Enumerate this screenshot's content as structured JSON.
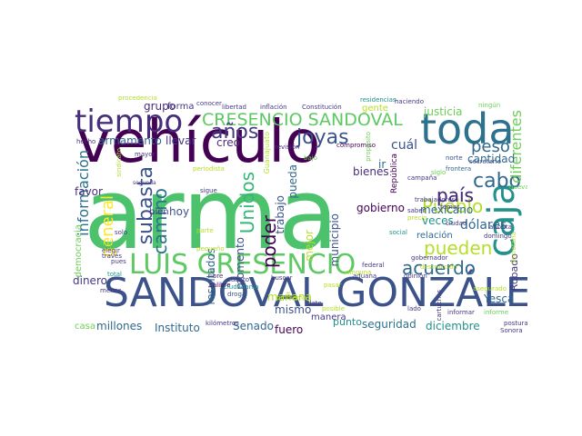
{
  "words": [
    {
      "text": "arma",
      "color": "#4cc26c"
    },
    {
      "text": "vehículo",
      "color": "#440154"
    },
    {
      "text": "SANDOVAL GONZÁLEZ",
      "color": "#3b528b"
    },
    {
      "text": "LUIS CRESENCIO",
      "color": "#5ec962"
    },
    {
      "text": "toda",
      "color": "#2c728e"
    },
    {
      "text": "tiempo",
      "color": "#472d7b"
    },
    {
      "text": "caja",
      "color": "#21918c"
    },
    {
      "text": "CRESENCIO SANDOVAL",
      "color": "#5ec962"
    },
    {
      "text": "subasta",
      "color": "#3b528b"
    },
    {
      "text": "información",
      "color": "#2c728e"
    },
    {
      "text": "años",
      "color": "#443983"
    },
    {
      "text": "joyas",
      "color": "#3b528b"
    },
    {
      "text": "cabo",
      "color": "#31688e"
    },
    {
      "text": "país",
      "color": "#472d7b"
    },
    {
      "text": "acuerdo",
      "color": "#31688e"
    },
    {
      "text": "Pueblo",
      "color": "#b5de2b"
    },
    {
      "text": "pueden",
      "color": "#b5de2b"
    },
    {
      "text": "poder",
      "color": "#440154"
    },
    {
      "text": "Unidos",
      "color": "#35b779"
    },
    {
      "text": "camino",
      "color": "#2c728e"
    },
    {
      "text": "general",
      "color": "#fde725"
    },
    {
      "text": "diferentes",
      "color": "#6ece58"
    },
    {
      "text": "peso",
      "color": "#31688e"
    },
    {
      "text": "armamento",
      "color": "#31688e"
    },
    {
      "text": "grupo",
      "color": "#472d7b"
    },
    {
      "text": "forma",
      "color": "#443983"
    },
    {
      "text": "llevar",
      "color": "#443983"
    },
    {
      "text": "justicia",
      "color": "#6ece58"
    },
    {
      "text": "cantidad",
      "color": "#31688e"
    },
    {
      "text": "gente",
      "color": "#b5de2b"
    },
    {
      "text": "veces",
      "color": "#21918c"
    },
    {
      "text": "dólares",
      "color": "#31688e"
    },
    {
      "text": "gobierno",
      "color": "#440154"
    },
    {
      "text": "mexicano",
      "color": "#31688e"
    },
    {
      "text": "relación",
      "color": "#31688e"
    },
    {
      "text": "Robado",
      "color": "#443983"
    },
    {
      "text": "Yesca",
      "color": "#31688e"
    },
    {
      "text": "seguridad",
      "color": "#2c728e"
    },
    {
      "text": "diciembre",
      "color": "#21918c"
    },
    {
      "text": "punto",
      "color": "#21918c"
    },
    {
      "text": "fuero",
      "color": "#440154"
    },
    {
      "text": "Senado",
      "color": "#31688e"
    },
    {
      "text": "Instituto",
      "color": "#31688e"
    },
    {
      "text": "millones",
      "color": "#31688e"
    },
    {
      "text": "casa",
      "color": "#6ece58"
    },
    {
      "text": "dinero",
      "color": "#443983"
    },
    {
      "text": "favor",
      "color": "#472d7b"
    },
    {
      "text": "democracia",
      "color": "#6ece58"
    },
    {
      "text": "mañana",
      "color": "#b5de2b"
    },
    {
      "text": "mismo",
      "color": "#3b528b"
    },
    {
      "text": "manera",
      "color": "#443983"
    },
    {
      "text": "momento",
      "color": "#3b528b"
    },
    {
      "text": "resultados",
      "color": "#31688e"
    },
    {
      "text": "hoy",
      "color": "#3b528b"
    },
    {
      "text": "bien",
      "color": "#443983"
    },
    {
      "text": "trabajo",
      "color": "#3b528b"
    },
    {
      "text": "pueda",
      "color": "#31688e"
    },
    {
      "text": "municipio",
      "color": "#3b528b"
    },
    {
      "text": "mejor",
      "color": "#b5de2b"
    },
    {
      "text": "bienes",
      "color": "#472d7b"
    },
    {
      "text": "ir",
      "color": "#31688e"
    },
    {
      "text": "cuál",
      "color": "#3b528b"
    },
    {
      "text": "creo",
      "color": "#472d7b"
    },
    {
      "text": "República",
      "color": "#440154"
    },
    {
      "text": "país",
      "color": "#472d7b"
    },
    {
      "text": "hecho",
      "color": "#443983"
    },
    {
      "text": "segunda",
      "color": "#443983"
    },
    {
      "text": "Constitución",
      "color": "#443983"
    },
    {
      "text": "libertad",
      "color": "#443983"
    },
    {
      "text": "inflación",
      "color": "#443983"
    },
    {
      "text": "conocer",
      "color": "#443983"
    },
    {
      "text": "residencias",
      "color": "#21918c"
    },
    {
      "text": "haciendo",
      "color": "#443983"
    },
    {
      "text": "ningún",
      "color": "#6ece58"
    },
    {
      "text": "procedencia",
      "color": "#b5de2b"
    },
    {
      "text": "revisión",
      "color": "#472d7b"
    },
    {
      "text": "compromiso",
      "color": "#440154"
    },
    {
      "text": "norte",
      "color": "#3b528b"
    },
    {
      "text": "secretario",
      "color": "#3b528b"
    },
    {
      "text": "siglo",
      "color": "#6ece58"
    },
    {
      "text": "frontera",
      "color": "#31688e"
    },
    {
      "text": "temas",
      "color": "#443983"
    },
    {
      "text": "trabajadores",
      "color": "#443983"
    },
    {
      "text": "gobernador",
      "color": "#443983"
    },
    {
      "text": "mayor",
      "color": "#443983"
    },
    {
      "text": "droga",
      "color": "#3b528b"
    },
    {
      "text": "libre",
      "color": "#472d7b"
    },
    {
      "text": "calibre",
      "color": "#440154"
    },
    {
      "text": "opinión",
      "color": "#443983"
    },
    {
      "text": "destrucción",
      "color": "#b5de2b"
    },
    {
      "text": "ciudadanía",
      "color": "#21918c"
    },
    {
      "text": "dato",
      "color": "#443983"
    },
    {
      "text": "total",
      "color": "#21918c"
    },
    {
      "text": "través",
      "color": "#443983"
    },
    {
      "text": "kilómetros",
      "color": "#443983"
    },
    {
      "text": "postura",
      "color": "#443983"
    },
    {
      "text": "ahorita",
      "color": "#443983"
    },
    {
      "text": "domingo",
      "color": "#443983"
    },
    {
      "text": "informe",
      "color": "#6ece58"
    },
    {
      "text": "nueva",
      "color": "#6ece58"
    },
    {
      "text": "campaña",
      "color": "#443983"
    },
    {
      "text": "propósito",
      "color": "#6ece58"
    },
    {
      "text": "social",
      "color": "#21918c"
    },
    {
      "text": "federal",
      "color": "#443983"
    },
    {
      "text": "ciudad",
      "color": "#443983"
    },
    {
      "text": "cuánto",
      "color": "#443983"
    },
    {
      "text": "aduana",
      "color": "#443983"
    },
    {
      "text": "buscar",
      "color": "#443983"
    },
    {
      "text": "Guanajuato",
      "color": "#b5de2b"
    },
    {
      "text": "periodista",
      "color": "#b5de2b"
    },
    {
      "text": "precio",
      "color": "#b5de2b"
    },
    {
      "text": "problema",
      "color": "#b5de2b"
    },
    {
      "text": "ninguna",
      "color": "#b5de2b"
    },
    {
      "text": "asegurado",
      "color": "#b5de2b"
    },
    {
      "text": "cartuchos",
      "color": "#443983"
    },
    {
      "text": "sigue",
      "color": "#443983"
    },
    {
      "text": "parte",
      "color": "#b5de2b"
    },
    {
      "text": "menos",
      "color": "#443983"
    },
    {
      "text": "lado",
      "color": "#443983"
    },
    {
      "text": "solo",
      "color": "#443983"
    },
    {
      "text": "pasar",
      "color": "#b5de2b"
    },
    {
      "text": "fusil",
      "color": "#6ece58"
    },
    {
      "text": "informar",
      "color": "#443983"
    },
    {
      "text": "pues",
      "color": "#443983"
    },
    {
      "text": "Secretaría",
      "color": "#b5de2b"
    },
    {
      "text": "Sonora",
      "color": "#443983"
    },
    {
      "text": "pequeño",
      "color": "#b5de2b"
    },
    {
      "text": "bajo",
      "color": "#6ece58"
    },
    {
      "text": "elegir",
      "color": "#443983"
    },
    {
      "text": "saber",
      "color": "#443983"
    },
    {
      "text": "posible",
      "color": "#b5de2b"
    },
    {
      "text": "sindicato",
      "color": "#b5de2b"
    }
  ]
}
